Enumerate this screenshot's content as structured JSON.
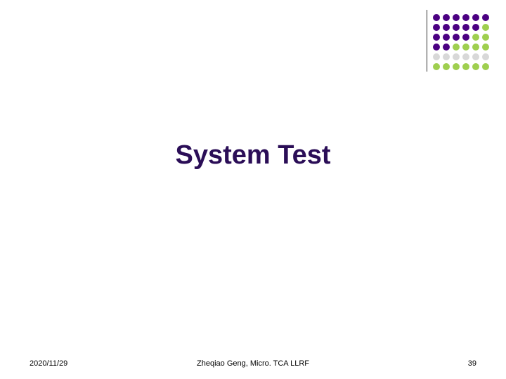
{
  "title": {
    "text": "System Test",
    "color": "#2b0e57",
    "fontsize": 38
  },
  "footer": {
    "date": "2020/11/29",
    "author": "Zheqiao Geng, Micro. TCA LLRF",
    "page": "39",
    "fontsize": 11,
    "color": "#000000"
  },
  "logo": {
    "divider_color": "#333333",
    "dot_colors": [
      [
        "#4b0082",
        "#4b0082",
        "#4b0082",
        "#4b0082",
        "#4b0082",
        "#4b0082"
      ],
      [
        "#4b0082",
        "#4b0082",
        "#4b0082",
        "#4b0082",
        "#4b0082",
        "#9fcf4f"
      ],
      [
        "#4b0082",
        "#4b0082",
        "#4b0082",
        "#4b0082",
        "#9fcf4f",
        "#9fcf4f"
      ],
      [
        "#4b0082",
        "#4b0082",
        "#9fcf4f",
        "#9fcf4f",
        "#9fcf4f",
        "#9fcf4f"
      ],
      [
        "#d8d8d8",
        "#d8d8d8",
        "#d8d8d8",
        "#d8d8d8",
        "#d8d8d8",
        "#d8d8d8"
      ],
      [
        "#9fcf4f",
        "#9fcf4f",
        "#9fcf4f",
        "#9fcf4f",
        "#9fcf4f",
        "#9fcf4f"
      ]
    ]
  }
}
